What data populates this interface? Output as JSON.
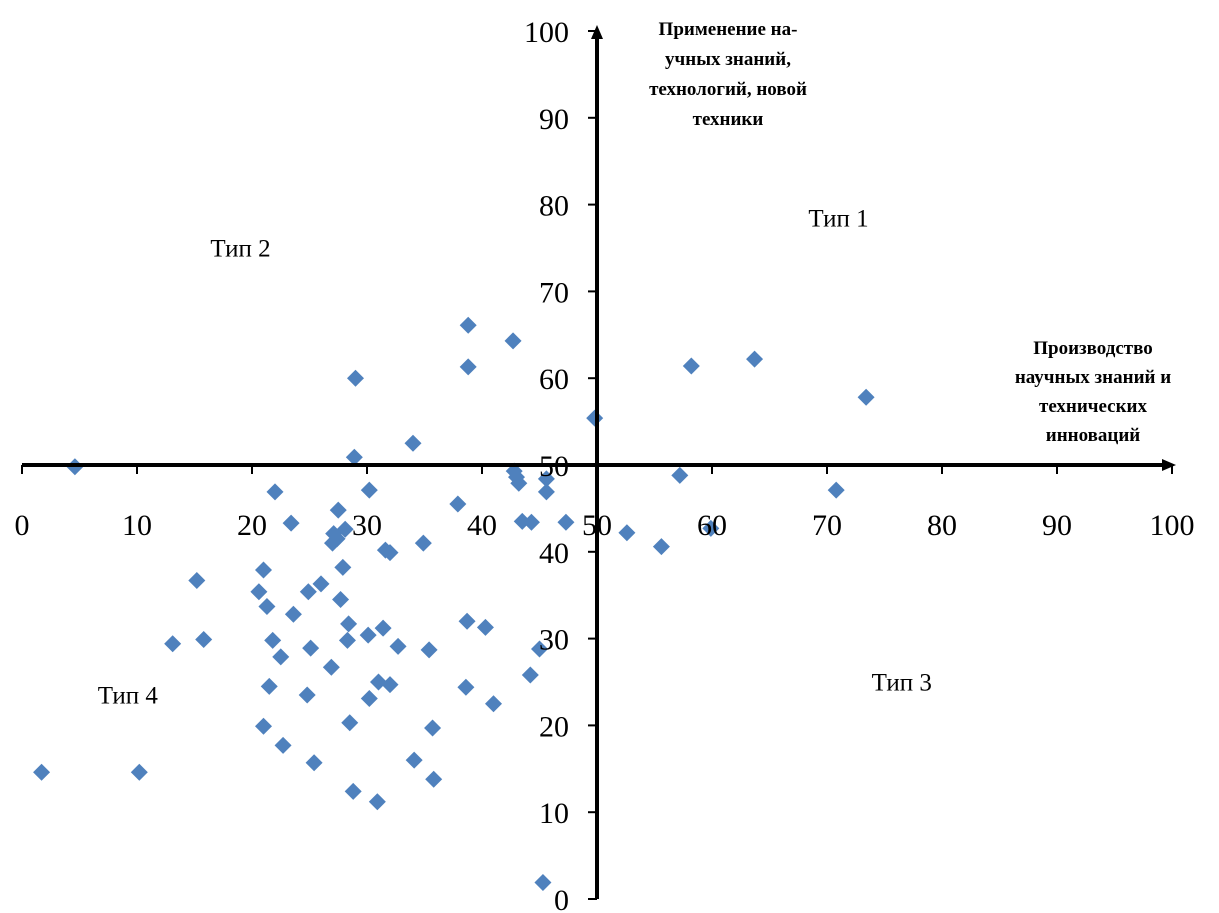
{
  "chart_data": {
    "type": "scatter",
    "marker": "diamond",
    "marker_color": "#4f81bd",
    "axis_color": "#000000",
    "xlim": [
      0,
      100
    ],
    "ylim": [
      0,
      100
    ],
    "x_axis_crosses_y_at": 50,
    "y_axis_crosses_x_at": 50,
    "grid": false,
    "x_ticks": [
      "0",
      "10",
      "20",
      "30",
      "40",
      "50",
      "60",
      "70",
      "80",
      "90",
      "100"
    ],
    "y_ticks": [
      "0",
      "10",
      "20",
      "30",
      "40",
      "50",
      "60",
      "70",
      "80",
      "90",
      "100"
    ],
    "xlabel": [
      "Производство",
      "научных знаний и",
      "технических",
      "инноваций"
    ],
    "ylabel": [
      "Применение на-",
      "учных знаний,",
      "технологий, новой",
      "техники"
    ],
    "quadrants": {
      "q1": "Тип 1",
      "q2": "Тип 2",
      "q3": "Тип 3",
      "q4": "Тип 4"
    },
    "points": [
      [
        1.7,
        14.6
      ],
      [
        4.6,
        49.8
      ],
      [
        10.2,
        14.6
      ],
      [
        13.1,
        29.4
      ],
      [
        15.2,
        36.7
      ],
      [
        15.8,
        29.9
      ],
      [
        20.6,
        35.4
      ],
      [
        21.0,
        37.9
      ],
      [
        21.0,
        19.9
      ],
      [
        21.3,
        33.7
      ],
      [
        21.5,
        24.5
      ],
      [
        21.8,
        29.8
      ],
      [
        22.0,
        46.9
      ],
      [
        22.5,
        27.9
      ],
      [
        22.7,
        17.7
      ],
      [
        23.4,
        43.3
      ],
      [
        23.6,
        32.8
      ],
      [
        24.8,
        23.5
      ],
      [
        24.9,
        35.4
      ],
      [
        25.1,
        28.9
      ],
      [
        25.4,
        15.7
      ],
      [
        26.0,
        36.3
      ],
      [
        26.9,
        26.7
      ],
      [
        27.0,
        41.0
      ],
      [
        27.1,
        42.1
      ],
      [
        27.4,
        41.5
      ],
      [
        27.5,
        44.8
      ],
      [
        27.7,
        34.5
      ],
      [
        27.9,
        38.2
      ],
      [
        28.1,
        42.6
      ],
      [
        28.3,
        29.8
      ],
      [
        28.4,
        31.7
      ],
      [
        28.5,
        20.3
      ],
      [
        28.8,
        12.4
      ],
      [
        28.9,
        50.9
      ],
      [
        29.0,
        60.0
      ],
      [
        30.1,
        30.4
      ],
      [
        30.2,
        47.1
      ],
      [
        30.2,
        23.1
      ],
      [
        30.9,
        11.2
      ],
      [
        31.0,
        25.0
      ],
      [
        31.4,
        31.2
      ],
      [
        31.6,
        40.2
      ],
      [
        32.0,
        24.7
      ],
      [
        32.0,
        39.9
      ],
      [
        32.7,
        29.1
      ],
      [
        34.0,
        52.5
      ],
      [
        34.1,
        16.0
      ],
      [
        34.9,
        41.0
      ],
      [
        35.4,
        28.7
      ],
      [
        35.7,
        19.7
      ],
      [
        35.8,
        13.8
      ],
      [
        37.9,
        45.5
      ],
      [
        38.6,
        24.4
      ],
      [
        38.7,
        32.0
      ],
      [
        38.8,
        66.1
      ],
      [
        38.8,
        61.3
      ],
      [
        40.3,
        31.3
      ],
      [
        41.0,
        22.5
      ],
      [
        42.7,
        64.3
      ],
      [
        42.8,
        49.3
      ],
      [
        43.0,
        48.6
      ],
      [
        43.2,
        47.9
      ],
      [
        43.5,
        43.5
      ],
      [
        44.2,
        25.8
      ],
      [
        44.3,
        43.4
      ],
      [
        45.0,
        28.8
      ],
      [
        45.3,
        1.9
      ],
      [
        45.6,
        48.4
      ],
      [
        45.6,
        46.9
      ],
      [
        47.3,
        43.4
      ],
      [
        49.8,
        55.4
      ],
      [
        52.6,
        42.2
      ],
      [
        55.6,
        40.6
      ],
      [
        57.2,
        48.8
      ],
      [
        58.2,
        61.4
      ],
      [
        59.9,
        42.7
      ],
      [
        63.7,
        62.2
      ],
      [
        70.8,
        47.1
      ],
      [
        73.4,
        57.8
      ]
    ]
  }
}
